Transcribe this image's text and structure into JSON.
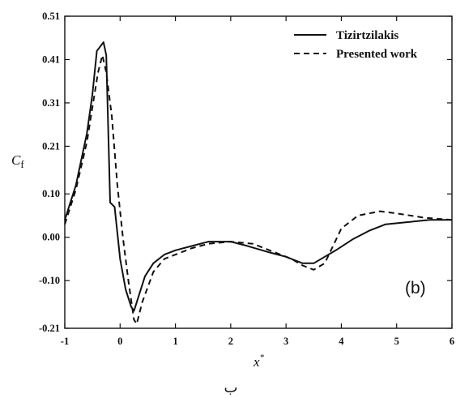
{
  "chart_data": {
    "type": "line",
    "title": "",
    "xlabel": "x*",
    "ylabel": "Cf",
    "xlim": [
      -1,
      6
    ],
    "ylim": [
      -0.21,
      0.51
    ],
    "x_ticks": [
      "-1",
      "0",
      "1",
      "2",
      "3",
      "4",
      "5",
      "6"
    ],
    "y_ticks": [
      "0.51",
      "0.41",
      "0.31",
      "0.21",
      "0.10",
      "0.00",
      "-0.10",
      "-0.21"
    ],
    "legend_position": "top-right",
    "panel_label": "(b)",
    "grid": false,
    "series": [
      {
        "name": "Tizirtzilakis",
        "style": "solid",
        "points": [
          [
            -1.0,
            0.04
          ],
          [
            -0.8,
            0.12
          ],
          [
            -0.6,
            0.24
          ],
          [
            -0.5,
            0.33
          ],
          [
            -0.42,
            0.43
          ],
          [
            -0.3,
            0.45
          ],
          [
            -0.25,
            0.42
          ],
          [
            -0.18,
            0.08
          ],
          [
            -0.1,
            0.07
          ],
          [
            0.0,
            -0.05
          ],
          [
            0.1,
            -0.12
          ],
          [
            0.2,
            -0.16
          ],
          [
            0.25,
            -0.17
          ],
          [
            0.35,
            -0.13
          ],
          [
            0.45,
            -0.09
          ],
          [
            0.6,
            -0.06
          ],
          [
            0.8,
            -0.04
          ],
          [
            1.0,
            -0.03
          ],
          [
            1.3,
            -0.02
          ],
          [
            1.6,
            -0.01
          ],
          [
            2.0,
            -0.01
          ],
          [
            2.3,
            -0.02
          ],
          [
            2.7,
            -0.035
          ],
          [
            3.0,
            -0.045
          ],
          [
            3.3,
            -0.06
          ],
          [
            3.5,
            -0.06
          ],
          [
            3.7,
            -0.045
          ],
          [
            3.9,
            -0.03
          ],
          [
            4.2,
            -0.005
          ],
          [
            4.5,
            0.015
          ],
          [
            4.8,
            0.03
          ],
          [
            5.2,
            0.035
          ],
          [
            5.6,
            0.04
          ],
          [
            6.0,
            0.04
          ]
        ]
      },
      {
        "name": "Presented work",
        "style": "dashed",
        "points": [
          [
            -1.0,
            0.03
          ],
          [
            -0.8,
            0.11
          ],
          [
            -0.6,
            0.22
          ],
          [
            -0.5,
            0.3
          ],
          [
            -0.4,
            0.38
          ],
          [
            -0.32,
            0.42
          ],
          [
            -0.25,
            0.38
          ],
          [
            -0.15,
            0.28
          ],
          [
            -0.05,
            0.12
          ],
          [
            0.05,
            0.0
          ],
          [
            0.15,
            -0.1
          ],
          [
            0.25,
            -0.19
          ],
          [
            0.3,
            -0.2
          ],
          [
            0.4,
            -0.15
          ],
          [
            0.6,
            -0.08
          ],
          [
            0.8,
            -0.05
          ],
          [
            1.0,
            -0.04
          ],
          [
            1.3,
            -0.025
          ],
          [
            1.6,
            -0.015
          ],
          [
            2.0,
            -0.01
          ],
          [
            2.4,
            -0.015
          ],
          [
            2.8,
            -0.035
          ],
          [
            3.1,
            -0.05
          ],
          [
            3.3,
            -0.065
          ],
          [
            3.5,
            -0.075
          ],
          [
            3.7,
            -0.06
          ],
          [
            3.85,
            -0.02
          ],
          [
            4.0,
            0.02
          ],
          [
            4.3,
            0.05
          ],
          [
            4.7,
            0.06
          ],
          [
            5.0,
            0.055
          ],
          [
            5.5,
            0.045
          ],
          [
            6.0,
            0.04
          ]
        ]
      }
    ]
  },
  "caption": "ب"
}
